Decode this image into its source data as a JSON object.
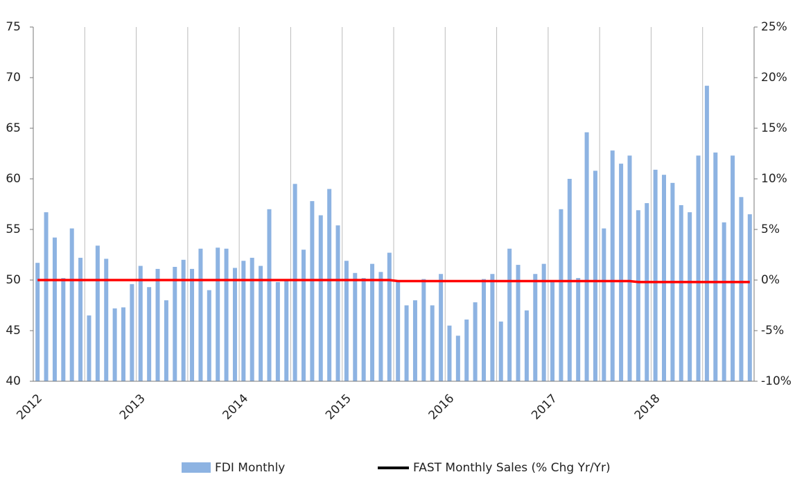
{
  "chart_data": {
    "type": "bar",
    "categories": [
      "2012",
      null,
      null,
      null,
      null,
      null,
      null,
      null,
      null,
      null,
      null,
      null,
      "2013",
      null,
      null,
      null,
      null,
      null,
      null,
      null,
      null,
      null,
      null,
      null,
      "2014",
      null,
      null,
      null,
      null,
      null,
      null,
      null,
      null,
      null,
      null,
      null,
      "2015",
      null,
      null,
      null,
      null,
      null,
      null,
      null,
      null,
      null,
      null,
      null,
      "2016",
      null,
      null,
      null,
      null,
      null,
      null,
      null,
      null,
      null,
      null,
      null,
      "2017",
      null,
      null,
      null,
      null,
      null,
      null,
      null,
      null,
      null,
      null,
      null,
      "2018",
      null,
      null,
      null,
      null,
      null,
      null,
      null,
      null,
      null,
      null,
      null
    ],
    "series": [
      {
        "name": "FDI Monthly",
        "type": "bar",
        "color": "#8db3e2",
        "values": [
          51.7,
          56.7,
          54.2,
          50.2,
          55.1,
          52.2,
          46.5,
          53.4,
          52.1,
          47.2,
          47.3,
          49.6,
          51.4,
          49.3,
          51.1,
          48.0,
          51.3,
          52.0,
          51.1,
          53.1,
          49.0,
          53.2,
          53.1,
          51.2,
          51.9,
          52.2,
          51.4,
          57.0,
          49.8,
          50.1,
          59.5,
          53.0,
          57.8,
          56.4,
          59.0,
          55.4,
          51.9,
          50.7,
          50.2,
          51.6,
          50.8,
          52.7,
          49.8,
          47.5,
          48.0,
          50.1,
          47.5,
          50.6,
          45.5,
          44.5,
          46.1,
          47.8,
          50.1,
          50.6,
          45.9,
          53.1,
          51.5,
          47.0,
          50.6,
          51.6,
          49.8,
          57.0,
          60.0,
          50.2,
          64.6,
          60.8,
          55.1,
          62.8,
          61.5,
          62.3,
          56.9,
          57.6,
          60.9,
          60.4,
          59.6,
          57.4,
          56.7,
          62.3,
          69.2,
          62.6,
          55.7,
          62.3,
          58.2,
          56.5
        ]
      },
      {
        "name": "FAST Monthly Sales (% Chg Yr/Yr)",
        "type": "line",
        "axis": "y2",
        "color": "#ff0000",
        "legend_color": "#000000",
        "values": [
          0,
          0,
          0,
          0,
          0,
          0,
          0,
          0,
          0,
          0,
          0,
          0,
          0,
          0,
          0,
          0,
          0,
          0,
          0,
          0,
          0,
          0,
          0,
          0,
          0,
          0,
          0,
          0,
          0,
          0,
          0,
          0,
          0,
          0,
          0,
          0,
          0,
          0,
          0,
          0,
          0,
          0,
          -0.1,
          -0.1,
          -0.1,
          -0.1,
          -0.1,
          -0.1,
          -0.1,
          -0.1,
          -0.1,
          -0.1,
          -0.1,
          -0.1,
          -0.1,
          -0.1,
          -0.1,
          -0.1,
          -0.1,
          -0.1,
          -0.1,
          -0.1,
          -0.1,
          -0.1,
          -0.1,
          -0.1,
          -0.1,
          -0.1,
          -0.1,
          -0.1,
          -0.2,
          -0.2,
          -0.2,
          -0.2,
          -0.2,
          -0.2,
          -0.2,
          -0.2,
          -0.2,
          -0.2,
          -0.2,
          -0.2,
          -0.2,
          -0.2
        ]
      }
    ],
    "ylim": [
      40,
      75
    ],
    "yticks": [
      40,
      45,
      50,
      55,
      60,
      65,
      70,
      75
    ],
    "y2lim": [
      -10,
      25
    ],
    "y2ticks": [
      {
        "value": -10,
        "label": "-10%"
      },
      {
        "value": -5,
        "label": "-5%"
      },
      {
        "value": 0,
        "label": "0%"
      },
      {
        "value": 5,
        "label": "5%"
      },
      {
        "value": 10,
        "label": "10%"
      },
      {
        "value": 15,
        "label": "15%"
      },
      {
        "value": 20,
        "label": "20%"
      },
      {
        "value": 25,
        "label": "25%"
      }
    ],
    "grid": true,
    "legend": "bottom"
  }
}
